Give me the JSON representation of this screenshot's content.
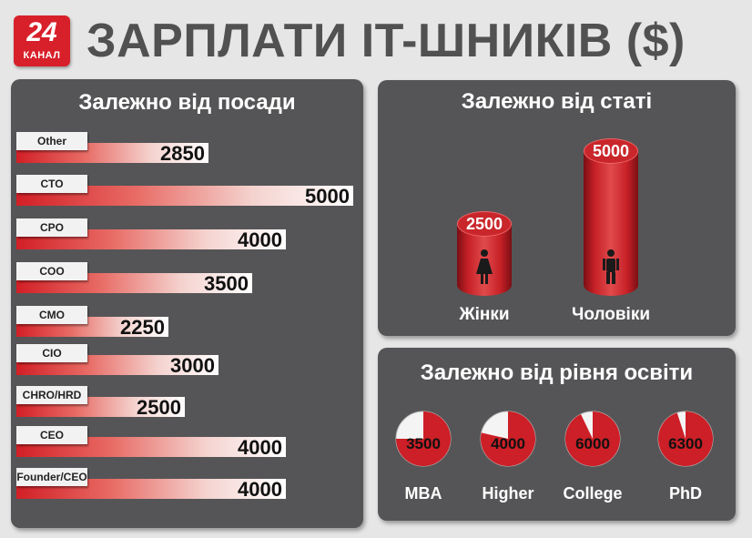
{
  "logo": {
    "number": "24",
    "sub": "КАНАЛ"
  },
  "title": "ЗАРПЛАТИ IT-ШНИКІВ ($)",
  "panels": {
    "position": {
      "title": "Залежно від посади"
    },
    "gender": {
      "title": "Залежно від статі"
    },
    "education": {
      "title": "Залежно від рівня освіти"
    }
  },
  "colors": {
    "accent": "#d8202a",
    "panel": "#555557",
    "background": "#e6e6e6"
  },
  "chart_data": [
    {
      "type": "bar",
      "orientation": "horizontal",
      "title": "Залежно від посади",
      "categories": [
        "Other",
        "CTO",
        "CPO",
        "COO",
        "CMO",
        "CIO",
        "CHRO/HRD",
        "CEO",
        "Founder/CEO"
      ],
      "values": [
        2850,
        5000,
        4000,
        3500,
        2250,
        3000,
        2500,
        4000,
        4000
      ],
      "labels": [
        "2850",
        "5000",
        "4000",
        "3500",
        "2250",
        "3000",
        "2500",
        "4000",
        "4000"
      ],
      "xlim": [
        0,
        5000
      ]
    },
    {
      "type": "bar",
      "title": "Залежно від статі",
      "categories": [
        "Жінки",
        "Чоловіки"
      ],
      "values": [
        2500,
        5000
      ],
      "labels": [
        "2500",
        "5000"
      ],
      "icons": [
        "female-icon",
        "male-icon"
      ]
    },
    {
      "type": "pie",
      "title": "Залежно від рівня освіти",
      "categories": [
        "MBA",
        "Higher",
        "College",
        "PhD"
      ],
      "values": [
        3500,
        4000,
        6000,
        6300
      ],
      "labels": [
        "3500",
        "4000",
        "6000",
        "6300"
      ]
    }
  ]
}
